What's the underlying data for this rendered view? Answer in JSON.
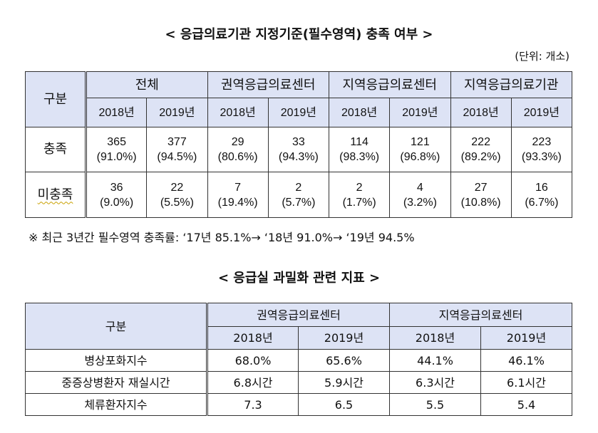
{
  "table1": {
    "title": "< 응급의료기관 지정기준(필수영역) 충족 여부 >",
    "unit": "(단위: 개소)",
    "corner": "구분",
    "groups": [
      "전체",
      "권역응급의료센터",
      "지역응급의료센터",
      "지역응급의료기관"
    ],
    "years": [
      "2018년",
      "2019년",
      "2018년",
      "2019년",
      "2018년",
      "2019년",
      "2018년",
      "2019년"
    ],
    "rows": [
      {
        "label": "충족",
        "counts": [
          "365",
          "377",
          "29",
          "33",
          "114",
          "121",
          "222",
          "223"
        ],
        "pcts": [
          "(91.0%)",
          "(94.5%)",
          "(80.6%)",
          "(94.3%)",
          "(98.3%)",
          "(96.8%)",
          "(89.2%)",
          "(93.3%)"
        ]
      },
      {
        "label": "미충족",
        "counts": [
          "36",
          "22",
          "7",
          "2",
          "2",
          "4",
          "27",
          "16"
        ],
        "pcts": [
          "(9.0%)",
          "(5.5%)",
          "(19.4%)",
          "(5.7%)",
          "(1.7%)",
          "(3.2%)",
          "(10.8%)",
          "(6.7%)"
        ]
      }
    ],
    "note": "※ 최근 3년간 필수영역 충족률: ‘17년 85.1%→ ‘18년 91.0%→ ‘19년 94.5%"
  },
  "table2": {
    "title": "< 응급실 과밀화 관련 지표 >",
    "corner": "구분",
    "groups": [
      "권역응급의료센터",
      "지역응급의료센터"
    ],
    "years": [
      "2018년",
      "2019년",
      "2018년",
      "2019년"
    ],
    "rows": [
      {
        "label": "병상포화지수",
        "values": [
          "68.0%",
          "65.6%",
          "44.1%",
          "46.1%"
        ]
      },
      {
        "label": "중증상병환자 재실시간",
        "values": [
          "6.8시간",
          "5.9시간",
          "6.3시간",
          "6.1시간"
        ]
      },
      {
        "label": "체류환자지수",
        "values": [
          "7.3",
          "6.5",
          "5.5",
          "5.4"
        ]
      }
    ]
  },
  "colors": {
    "header_bg": "#dde3f5"
  }
}
